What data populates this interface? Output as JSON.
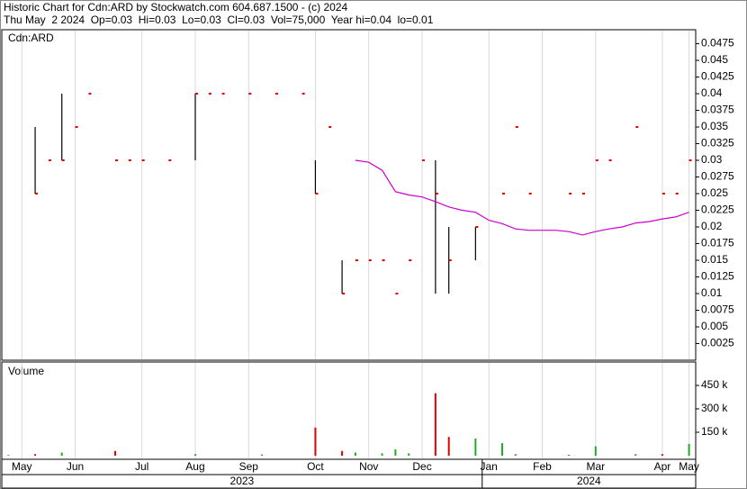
{
  "chart_data": {
    "type": "ohlc",
    "title": "Historic Chart for Cdn:ARD by Stockwatch.com 604.687.1500 - (c) 2024",
    "subtitle": "Thu May  2 2024  Op=0.03  Hi=0.03  Lo=0.03  Cl=0.03  Vol=75,000  Year hi=0.04  lo=0.01",
    "symbol_label": "Cdn:ARD",
    "categories": [
      null,
      "May",
      null,
      null,
      null,
      "Jun",
      null,
      null,
      null,
      null,
      "Jul",
      null,
      null,
      null,
      "Aug",
      null,
      null,
      null,
      "Sep",
      null,
      null,
      null,
      null,
      "Oct",
      null,
      null,
      null,
      "Nov",
      null,
      null,
      null,
      "Dec",
      null,
      null,
      null,
      null,
      "Jan",
      null,
      null,
      null,
      "Feb",
      null,
      null,
      null,
      "Mar",
      null,
      null,
      null,
      null,
      "Apr",
      null,
      "May"
    ],
    "years": [
      "2023",
      "2024"
    ],
    "high": [
      null,
      null,
      0.035,
      null,
      0.04,
      null,
      null,
      null,
      null,
      null,
      null,
      null,
      null,
      null,
      0.04,
      null,
      null,
      null,
      null,
      null,
      null,
      null,
      null,
      0.03,
      null,
      0.015,
      null,
      null,
      null,
      null,
      null,
      null,
      0.03,
      0.02,
      null,
      0.02,
      null,
      null,
      null,
      null,
      null,
      null,
      null,
      null,
      null,
      null,
      null,
      null,
      null,
      null,
      null,
      null
    ],
    "low": [
      null,
      null,
      0.025,
      null,
      0.03,
      null,
      null,
      null,
      null,
      null,
      null,
      null,
      null,
      null,
      0.03,
      null,
      null,
      null,
      null,
      null,
      null,
      null,
      null,
      0.025,
      null,
      0.01,
      null,
      null,
      null,
      null,
      null,
      null,
      0.01,
      0.01,
      null,
      0.015,
      null,
      null,
      null,
      null,
      null,
      null,
      null,
      null,
      null,
      null,
      null,
      null,
      null,
      null,
      null,
      null
    ],
    "close": [
      null,
      null,
      0.025,
      0.03,
      0.03,
      0.035,
      0.04,
      null,
      0.03,
      0.03,
      0.03,
      null,
      0.03,
      null,
      0.04,
      0.04,
      0.04,
      null,
      0.04,
      null,
      0.04,
      null,
      0.04,
      0.025,
      0.035,
      0.01,
      0.015,
      0.015,
      0.015,
      0.01,
      0.015,
      0.03,
      0.025,
      0.015,
      null,
      0.02,
      null,
      0.025,
      0.035,
      0.025,
      null,
      null,
      0.025,
      0.025,
      0.03,
      0.03,
      null,
      0.035,
      null,
      0.025,
      0.025,
      0.03
    ],
    "bar_color": "#000000",
    "close_color": "#e00000",
    "ma": {
      "color": "#cc00cc",
      "values": [
        null,
        null,
        null,
        null,
        null,
        null,
        null,
        null,
        null,
        null,
        null,
        null,
        null,
        null,
        null,
        null,
        null,
        null,
        null,
        null,
        null,
        null,
        null,
        null,
        null,
        null,
        0.03,
        0.0297,
        0.0285,
        0.0253,
        0.0248,
        0.0245,
        0.0238,
        0.023,
        0.0225,
        0.0222,
        0.021,
        0.0205,
        0.0197,
        0.0195,
        0.0195,
        0.0195,
        0.0193,
        0.0188,
        0.0193,
        0.0197,
        0.02,
        0.0206,
        0.0208,
        0.0212,
        0.0215,
        0.0222
      ]
    },
    "ylim": [
      0,
      0.0496
    ],
    "yticks": [
      0.0025,
      0.005,
      0.0075,
      0.01,
      0.0125,
      0.015,
      0.0175,
      0.02,
      0.0225,
      0.025,
      0.0275,
      0.03,
      0.0325,
      0.035,
      0.0375,
      0.04,
      0.0425,
      0.045,
      0.0475
    ],
    "grid": "x",
    "grid_color": "#d8d8d8",
    "volume": {
      "label": "Volume",
      "values": [
        5000,
        null,
        10000,
        null,
        20000,
        null,
        null,
        null,
        30000,
        null,
        null,
        null,
        null,
        null,
        10000,
        null,
        null,
        null,
        null,
        8000,
        null,
        null,
        null,
        180000,
        null,
        30000,
        20000,
        null,
        15000,
        40000,
        15000,
        null,
        400000,
        120000,
        null,
        110000,
        null,
        80000,
        10000,
        null,
        null,
        null,
        5000,
        null,
        60000,
        null,
        null,
        10000,
        null,
        10000,
        null,
        75000
      ],
      "colors": [
        "#22aa22",
        null,
        "#e00000",
        null,
        "#22aa22",
        null,
        null,
        null,
        "#e00000",
        null,
        null,
        null,
        null,
        null,
        "#22aa22",
        null,
        null,
        null,
        null,
        "#22aa22",
        null,
        null,
        null,
        "#e00000",
        null,
        "#e00000",
        "#22aa22",
        null,
        "#22aa22",
        "#22aa22",
        "#22aa22",
        null,
        "#e00000",
        "#e00000",
        null,
        "#22aa22",
        null,
        "#22aa22",
        "#22aa22",
        null,
        null,
        null,
        "#e00000",
        null,
        "#22aa22",
        null,
        null,
        "#22aa22",
        null,
        "#e00000",
        null,
        "#22aa22"
      ],
      "ylim": [
        0,
        600000
      ],
      "yticks": [
        {
          "value": 150000,
          "label": "150 k"
        },
        {
          "value": 300000,
          "label": "300 k"
        },
        {
          "value": 450000,
          "label": "450 k"
        }
      ]
    }
  }
}
